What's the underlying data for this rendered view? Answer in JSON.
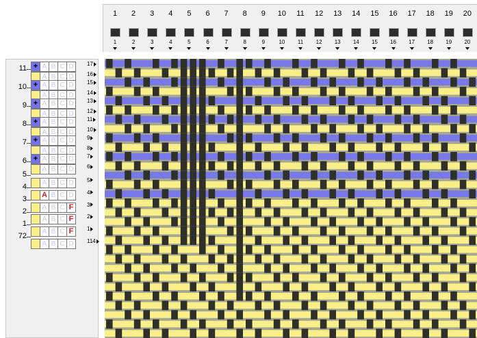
{
  "colors": {
    "warp": "#2e3029",
    "weft_yellow": "#fbef8a",
    "weft_blue": "#7878e8",
    "shadow": "#a6a890",
    "panel_bg": "#f0f0f0"
  },
  "top_columns": [
    "1",
    "2",
    "3",
    "4",
    "5",
    "6",
    "7",
    "8",
    "9",
    "10",
    "11",
    "12",
    "13",
    "14",
    "15",
    "16",
    "17",
    "18",
    "19",
    "20"
  ],
  "top_column_subs": [
    "1",
    "2",
    "3",
    "4",
    "5",
    "6",
    "7",
    "8",
    "9",
    "10",
    "11",
    "12",
    "13",
    "14",
    "15",
    "16",
    "17",
    "18",
    "19",
    "20"
  ],
  "groups": [
    {
      "label": "11",
      "rows": [
        {
          "num": "17",
          "color": "blue",
          "marks": [
            "+",
            "",
            "",
            "",
            ""
          ]
        },
        {
          "num": "16",
          "color": "yellow",
          "marks": [
            "",
            "",
            "",
            "",
            ""
          ]
        }
      ]
    },
    {
      "label": "10",
      "rows": [
        {
          "num": "15",
          "color": "blue",
          "marks": [
            "+",
            "",
            "",
            "",
            ""
          ]
        },
        {
          "num": "14",
          "color": "yellow",
          "marks": [
            "",
            "",
            "",
            "",
            ""
          ]
        }
      ]
    },
    {
      "label": "9",
      "rows": [
        {
          "num": "13",
          "color": "blue",
          "marks": [
            "+",
            "",
            "",
            "",
            ""
          ]
        },
        {
          "num": "12",
          "color": "yellow",
          "marks": [
            "",
            "",
            "",
            "",
            ""
          ]
        }
      ]
    },
    {
      "label": "8",
      "rows": [
        {
          "num": "11",
          "color": "blue",
          "marks": [
            "+",
            "",
            "",
            "",
            ""
          ]
        },
        {
          "num": "10",
          "color": "yellow",
          "marks": [
            "",
            "",
            "",
            "",
            ""
          ]
        }
      ]
    },
    {
      "label": "7",
      "rows": [
        {
          "num": "9",
          "color": "blue",
          "marks": [
            "+",
            "",
            "",
            "",
            ""
          ]
        },
        {
          "num": "8",
          "color": "yellow",
          "marks": [
            "",
            "",
            "",
            "",
            ""
          ]
        }
      ]
    },
    {
      "label": "6",
      "rows": [
        {
          "num": "7",
          "color": "blue",
          "marks": [
            "+",
            "",
            "",
            "",
            ""
          ]
        },
        {
          "num": "6",
          "color": "yellow",
          "marks": [
            "",
            "",
            "",
            "",
            ""
          ]
        }
      ]
    },
    {
      "label": "5",
      "rows": [
        {
          "num": "5",
          "color": "yellow",
          "marks": [
            "",
            "",
            "",
            "",
            ""
          ]
        }
      ]
    },
    {
      "label": "4",
      "rows": [
        {
          "num": "4",
          "color": "yellow",
          "marks": [
            "",
            "A",
            "",
            "",
            ""
          ]
        }
      ]
    },
    {
      "label": "3",
      "rows": [
        {
          "num": "3",
          "color": "yellow",
          "marks": [
            "",
            "",
            "",
            "",
            "F"
          ]
        }
      ]
    },
    {
      "label": "2",
      "rows": [
        {
          "num": "2",
          "color": "yellow",
          "marks": [
            "",
            "",
            "",
            "",
            "F"
          ]
        }
      ]
    },
    {
      "label": "1",
      "rows": [
        {
          "num": "1",
          "color": "yellow",
          "marks": [
            "",
            "",
            "",
            "",
            "F"
          ]
        }
      ]
    },
    {
      "label": "72",
      "rows": [
        {
          "num": "114",
          "color": "yellow",
          "marks": [
            "",
            "",
            "",
            "",
            ""
          ]
        }
      ]
    }
  ],
  "faint_letters": [
    "A",
    "B",
    "C",
    "D"
  ]
}
